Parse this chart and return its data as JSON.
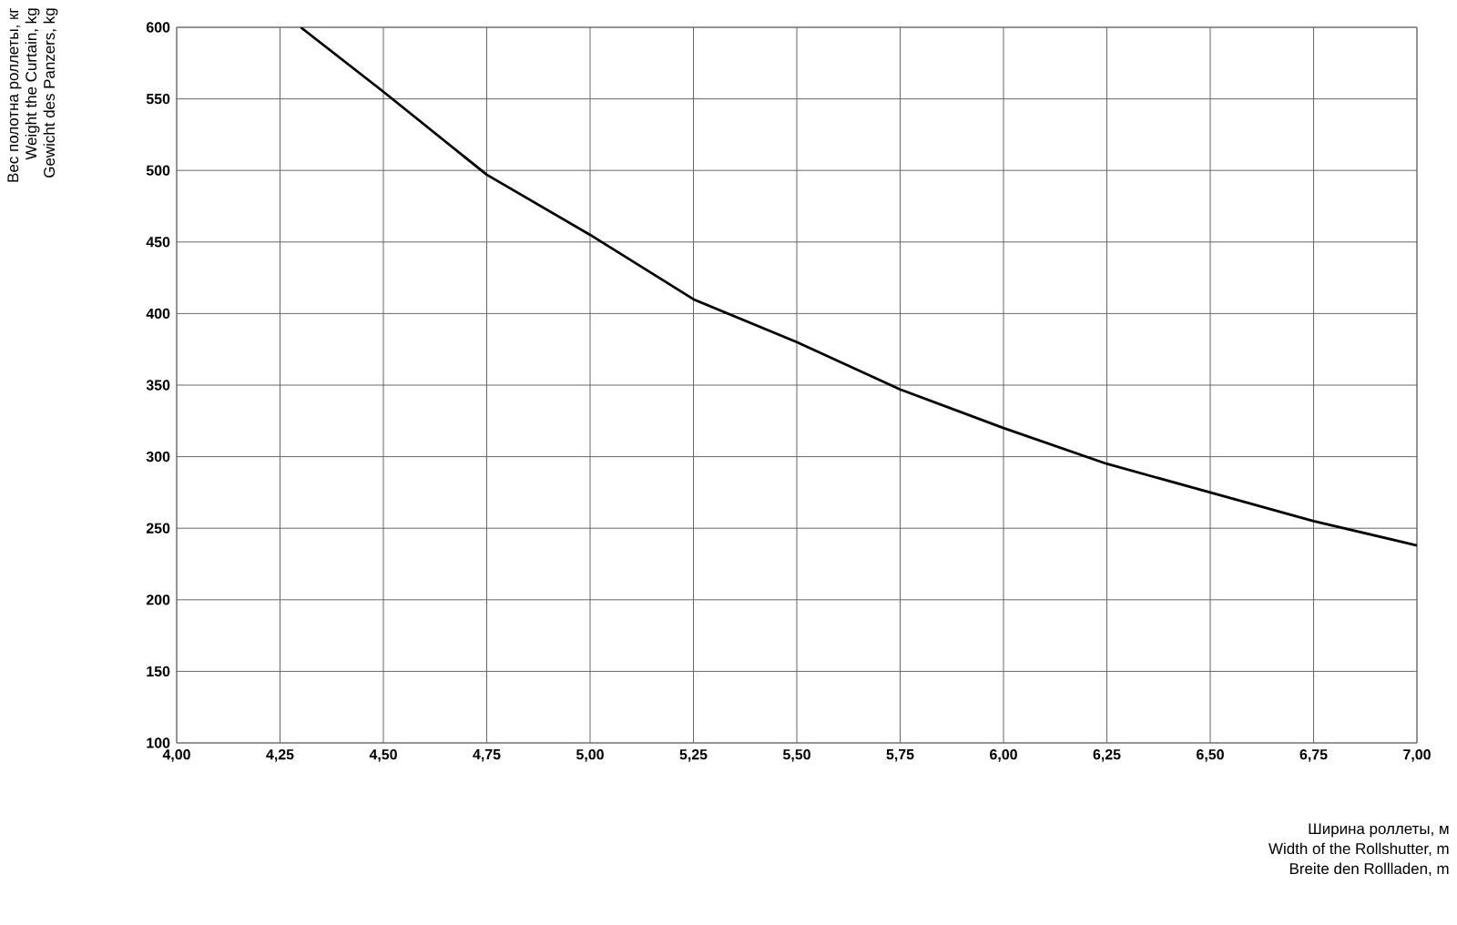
{
  "chart_data": {
    "type": "line",
    "xlabel": [
      "Ширина роллеты, м",
      "Width of the Rollshutter, m",
      "Breite den Rollladen, m"
    ],
    "ylabel": [
      "Вес полотна роллеты, кг",
      "Weight the Curtain, kg",
      "Gewicht des Panzers, kg"
    ],
    "x": [
      4.3,
      4.5,
      4.75,
      5.0,
      5.25,
      5.5,
      5.75,
      6.0,
      6.25,
      6.5,
      6.75,
      7.0
    ],
    "values": [
      600,
      555,
      497,
      455,
      410,
      380,
      347,
      320,
      295,
      275,
      255,
      238
    ],
    "color": "#000000",
    "xlim": [
      4.0,
      7.0
    ],
    "ylim": [
      100,
      600
    ],
    "xticks": [
      {
        "value": 4.0,
        "label": "4,00"
      },
      {
        "value": 4.25,
        "label": "4,25"
      },
      {
        "value": 4.5,
        "label": "4,50"
      },
      {
        "value": 4.75,
        "label": "4,75"
      },
      {
        "value": 5.0,
        "label": "5,00"
      },
      {
        "value": 5.25,
        "label": "5,25"
      },
      {
        "value": 5.5,
        "label": "5,50"
      },
      {
        "value": 5.75,
        "label": "5,75"
      },
      {
        "value": 6.0,
        "label": "6,00"
      },
      {
        "value": 6.25,
        "label": "6,25"
      },
      {
        "value": 6.5,
        "label": "6,50"
      },
      {
        "value": 6.75,
        "label": "6,75"
      },
      {
        "value": 7.0,
        "label": "7,00"
      }
    ],
    "yticks": [
      100,
      150,
      200,
      250,
      300,
      350,
      400,
      450,
      500,
      550,
      600
    ],
    "grid": true
  }
}
